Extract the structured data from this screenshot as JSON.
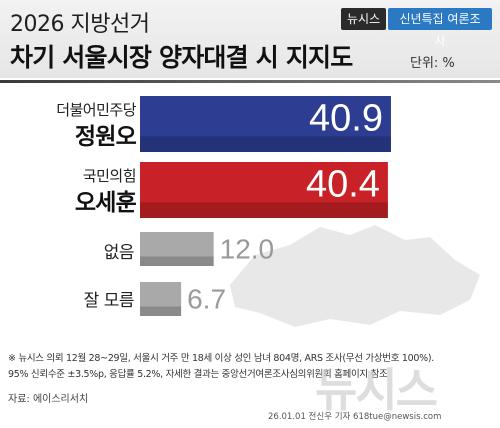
{
  "header": {
    "supertitle": "2026 지방선거",
    "title": "차기 서울시장 양자대결 시 지지도",
    "unit": "단위: %",
    "brand_badge": "뉴시스",
    "series_badge": "신년특집 여론조사"
  },
  "colors": {
    "democratic": "#2d3e92",
    "people_power": "#c82127",
    "neutral": "#a9a9a9"
  },
  "chart_data": {
    "type": "bar",
    "orientation": "horizontal",
    "title": "차기 서울시장 양자대결 시 지지도",
    "unit": "%",
    "xlim": [
      0,
      44
    ],
    "categories": [
      {
        "party": "더불어민주당",
        "name": "정원오",
        "value": 40.9,
        "label": "40.9",
        "color": "#2d3e92"
      },
      {
        "party": "국민의힘",
        "name": "오세훈",
        "value": 40.4,
        "label": "40.4",
        "color": "#c82127"
      },
      {
        "party": "",
        "name": "없음",
        "value": 12.0,
        "label": "12.0",
        "color": "#a9a9a9"
      },
      {
        "party": "",
        "name": "잘 모름",
        "value": 6.7,
        "label": "6.7",
        "color": "#a9a9a9"
      }
    ]
  },
  "footnote": {
    "line1": "※ 뉴시스 의뢰 12월 28~29일, 서울시 거주 만 18세 이상 성인 남녀 804명, ARS 조사(무선 가상번호 100%).",
    "line2": "95% 신뢰수준 ±3.5%p, 응답률 5.2%, 자세한 결과는 중앙선거여론조사심의위원회 홈페이지 참조",
    "source": "자료: 에이스리서치"
  },
  "watermark": "뉴시스",
  "credit": "26.01.01 전신우 기자 618tue@newsis.com"
}
